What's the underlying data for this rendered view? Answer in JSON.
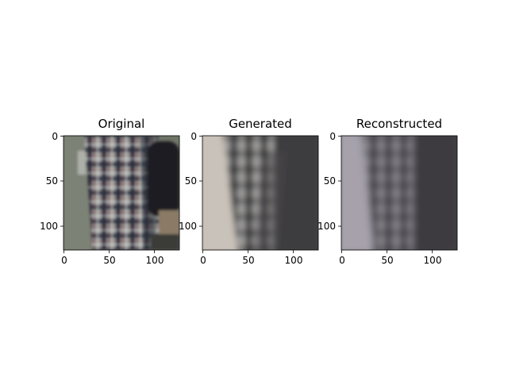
{
  "chart_data": [
    {
      "type": "image",
      "title": "Original",
      "xticks": [
        0,
        50,
        100
      ],
      "yticks": [
        0,
        50,
        100
      ],
      "xlim": [
        -0.5,
        127.5
      ],
      "ylim": [
        127.5,
        -0.5
      ],
      "image_description": "photo crop of a plaid shirt (grey, dark navy and faint red checks), grey background on the left, dark figure on the right"
    },
    {
      "type": "image",
      "title": "Generated",
      "xticks": [
        0,
        50,
        100
      ],
      "yticks": [
        0,
        50,
        100
      ],
      "xlim": [
        -0.5,
        127.5
      ],
      "ylim": [
        127.5,
        -0.5
      ],
      "image_description": "blurry generated version: light beige left area, dark plaid pattern center, dark right"
    },
    {
      "type": "image",
      "title": "Reconstructed",
      "xticks": [
        0,
        50,
        100
      ],
      "yticks": [
        0,
        50,
        100
      ],
      "xlim": [
        -0.5,
        127.5
      ],
      "ylim": [
        127.5,
        -0.5
      ],
      "image_description": "blurry reconstruction: light lavender-grey left area, muted dark plaid, dark right"
    }
  ]
}
